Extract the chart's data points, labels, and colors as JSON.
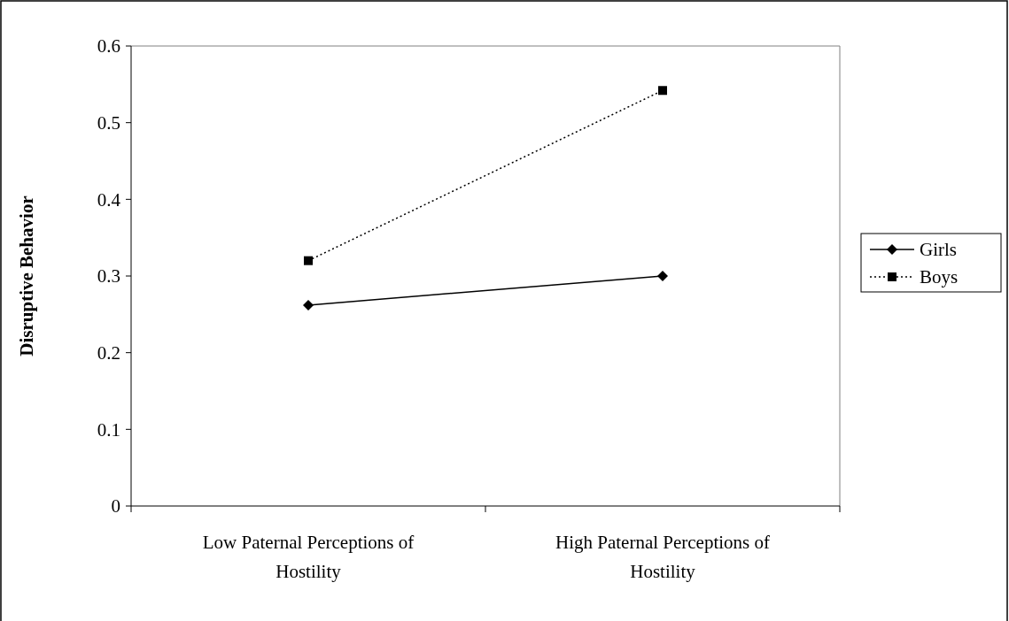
{
  "chart_data": {
    "type": "line",
    "ylabel": "Disruptive Behavior",
    "categories": [
      "Low Paternal Perceptions of Hostility",
      "High Paternal Perceptions of Hostility"
    ],
    "series": [
      {
        "name": "Girls",
        "color": "#000000",
        "values": [
          0.262,
          0.3
        ],
        "marker": "diamond",
        "line_style": "solid"
      },
      {
        "name": "Boys",
        "color": "#000000",
        "values": [
          0.32,
          0.542
        ],
        "marker": "square",
        "line_style": "dotted"
      }
    ],
    "ylim": [
      0,
      0.6
    ],
    "yticks": [
      0,
      0.1,
      0.2,
      0.3,
      0.4,
      0.5,
      0.6
    ],
    "grid": false,
    "legend": "right"
  }
}
